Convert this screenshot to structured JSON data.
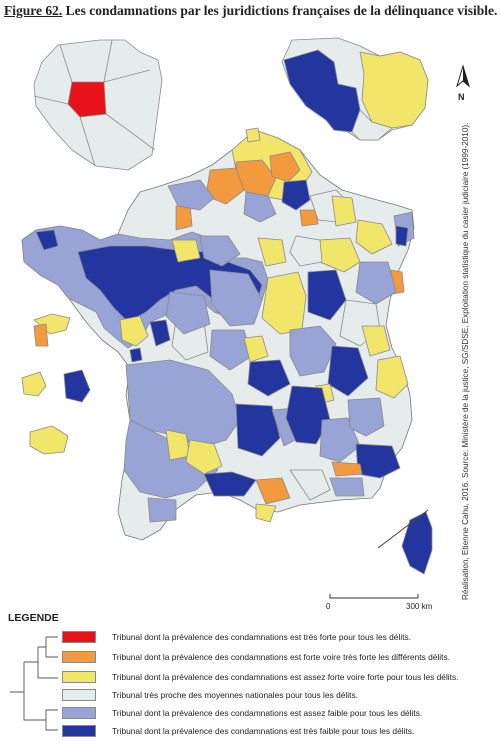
{
  "title": {
    "figure_label": "Figure 62.",
    "text": "Les condamnations par les juridictions françaises de la délinquance visible."
  },
  "north_label": "N",
  "scale": {
    "zero": "0",
    "distance": "300 km"
  },
  "credit": "Réalisation, Etienne Cahu, 2016. Source: Ministère de la justice, SG/SDSE, Exploitation statistique du casier judiciaire (1999-2010).",
  "legend": {
    "title": "LEGENDE",
    "items": [
      {
        "color": "#e8121a",
        "label": "Tribunal dont la prévalence des condamnations est très forte pour tous les délits."
      },
      {
        "color": "#f39a3e",
        "label": "Tribunal dont la prévalence des condamnations est forte voire très forte les différents délits."
      },
      {
        "color": "#f1e56a",
        "label": "Tribunal dont la prévalence des condamnations est assez forte voire forte pour tous les délits."
      },
      {
        "color": "#e6ecec",
        "label": "Tribunal très proche des moyennes nationales pour tous les délits."
      },
      {
        "color": "#98a3d6",
        "label": "Tribunal dont la prévalence des condamnations est assez faible pour tous les délits."
      },
      {
        "color": "#2336a0",
        "label": "Tribunal dont la prévalence des condamnations est très faible pour tous les délits."
      }
    ]
  },
  "colors": {
    "very_high": "#e8121a",
    "high": "#f39a3e",
    "fairly_high": "#f1e56a",
    "average": "#e6ecec",
    "fairly_low": "#98a3d6",
    "very_low": "#2336a0",
    "border": "#8a8a8a"
  }
}
